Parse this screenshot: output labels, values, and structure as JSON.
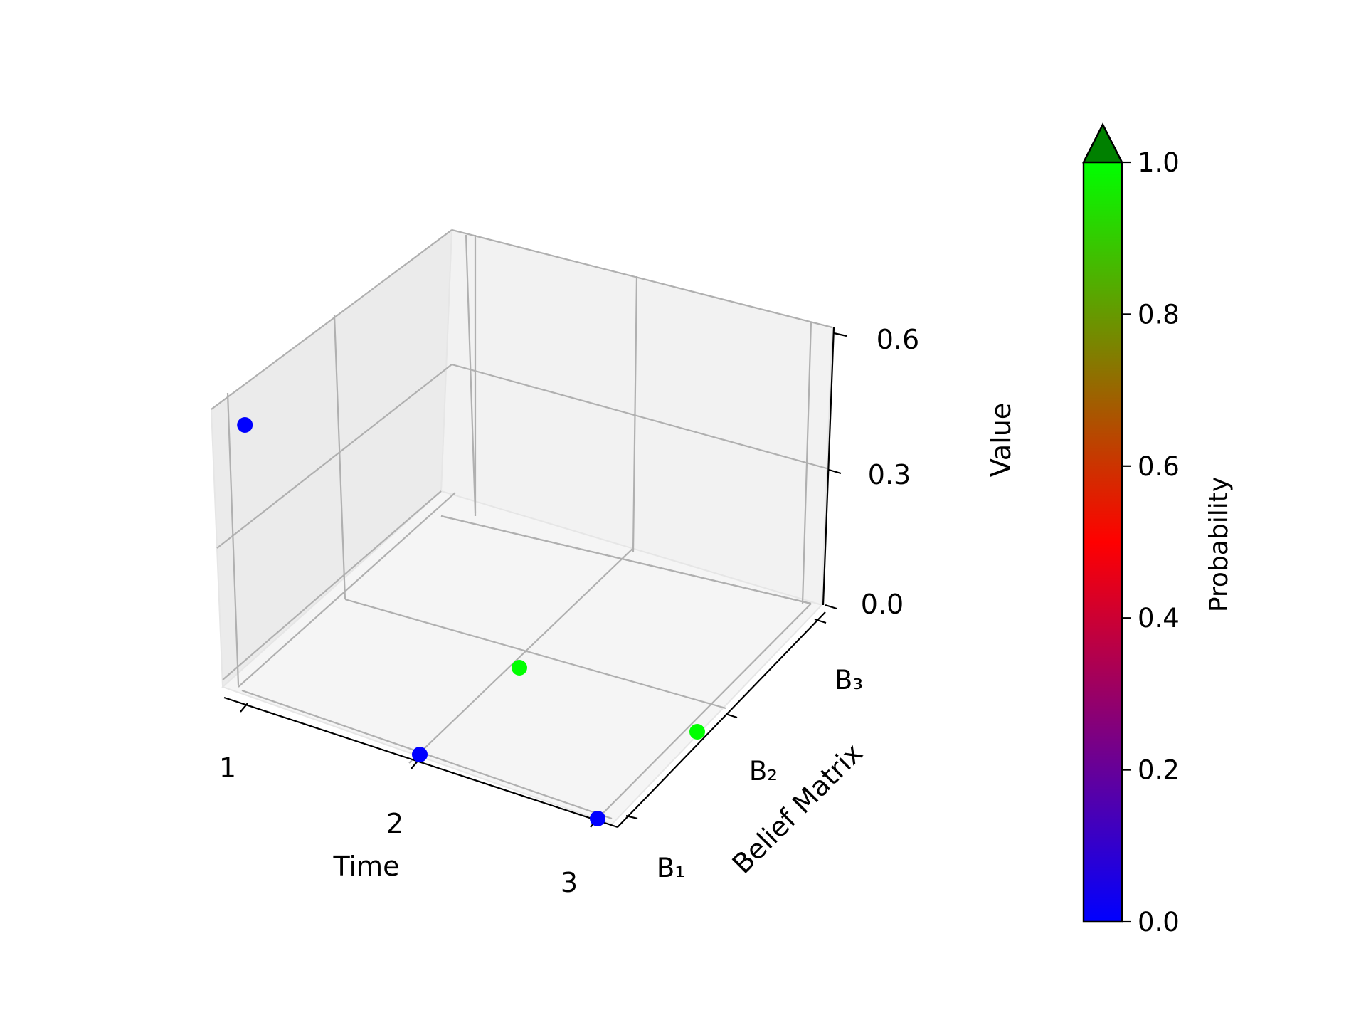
{
  "chart_data": {
    "type": "scatter",
    "projection": "3d",
    "title": "",
    "xlabel": "Time",
    "ylabel": "Belief Matrix",
    "zlabel": "Value",
    "x_ticks": [
      "1",
      "2",
      "3"
    ],
    "y_ticks": [
      "B₁",
      "B₂",
      "B₃"
    ],
    "z_ticks": [
      "0.0",
      "0.3",
      "0.6"
    ],
    "xlim": [
      1,
      3
    ],
    "ylim": [
      1,
      3
    ],
    "zlim": [
      0,
      0.6
    ],
    "grid": true,
    "points": [
      {
        "x": 1,
        "y": 1,
        "z": 0.6,
        "probability": 0.0
      },
      {
        "x": 2,
        "y": 1,
        "z": 0.0,
        "probability": 0.0
      },
      {
        "x": 3,
        "y": 1,
        "z": 0.0,
        "probability": 0.0
      },
      {
        "x": 2,
        "y": 2,
        "z": 0.0,
        "probability": 1.0
      },
      {
        "x": 3,
        "y": 2,
        "z": 0.0,
        "probability": 1.0
      }
    ],
    "colorbar": {
      "label": "Probability",
      "ticks": [
        "0.0",
        "0.2",
        "0.4",
        "0.6",
        "0.8",
        "1.0"
      ],
      "range": [
        0,
        1
      ],
      "extend": "max",
      "colors": [
        "#0000ff",
        "#ff0000",
        "#00ff00"
      ],
      "extend_color": "#008000"
    }
  }
}
